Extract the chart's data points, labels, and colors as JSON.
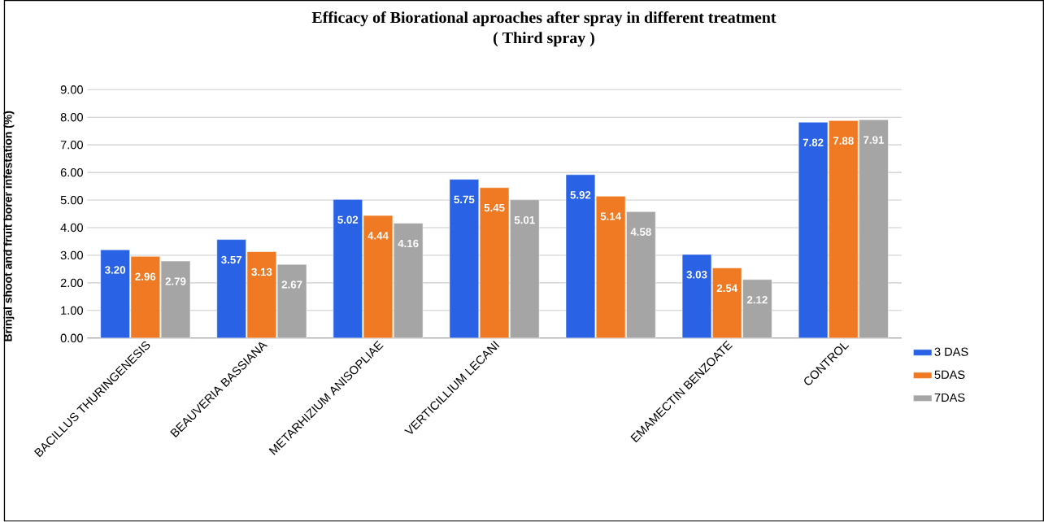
{
  "chart_data": {
    "type": "bar",
    "title": "Efficacy of Biorational aproaches after spray in different treatment",
    "subtitle": "( Third spray )",
    "ylabel": "Brinjal shoot and fruit borer infestation (%)",
    "categories": [
      "BACILLUS THURINGENESIS",
      "BEAUVERIA BASSIANA",
      "METARHIZIUM ANISOPLIAE",
      "VERTICILLIUM LECANI",
      null,
      "EMAMECTIN BENZOATE",
      "CONTROL"
    ],
    "series": [
      {
        "name": "3 DAS",
        "color": "#2a62e6",
        "values": [
          3.2,
          3.57,
          5.02,
          5.75,
          5.92,
          3.03,
          7.82
        ],
        "value_labels": [
          "3.20",
          "3.57",
          "5.02",
          "5.75",
          "5.92",
          "3.03",
          "7.82"
        ]
      },
      {
        "name": "5DAS",
        "color": "#f07a24",
        "values": [
          2.96,
          3.13,
          4.44,
          5.45,
          5.14,
          2.54,
          7.88
        ],
        "value_labels": [
          "2.96",
          "3.13",
          "4.44",
          "5.45",
          "5.14",
          "2.54",
          "7.88"
        ]
      },
      {
        "name": "7DAS",
        "color": "#a5a5a5",
        "values": [
          2.79,
          2.67,
          4.16,
          5.01,
          4.58,
          2.12,
          7.91
        ],
        "value_labels": [
          "2.79",
          "2.67",
          "4.16",
          "5.01",
          "4.58",
          "2.12",
          "7.91"
        ]
      }
    ],
    "ylim": [
      0,
      9
    ],
    "yticks": [
      {
        "value": 0,
        "label": "0.00"
      },
      {
        "value": 1,
        "label": "1.00"
      },
      {
        "value": 2,
        "label": "2.00"
      },
      {
        "value": 3,
        "label": "3.00"
      },
      {
        "value": 4,
        "label": "4.00"
      },
      {
        "value": 5,
        "label": "5.00"
      },
      {
        "value": 6,
        "label": "6.00"
      },
      {
        "value": 7,
        "label": "7.00"
      },
      {
        "value": 8,
        "label": "8.00"
      },
      {
        "value": 9,
        "label": "9.00"
      }
    ],
    "grid": "y",
    "legend": "bottom right"
  }
}
